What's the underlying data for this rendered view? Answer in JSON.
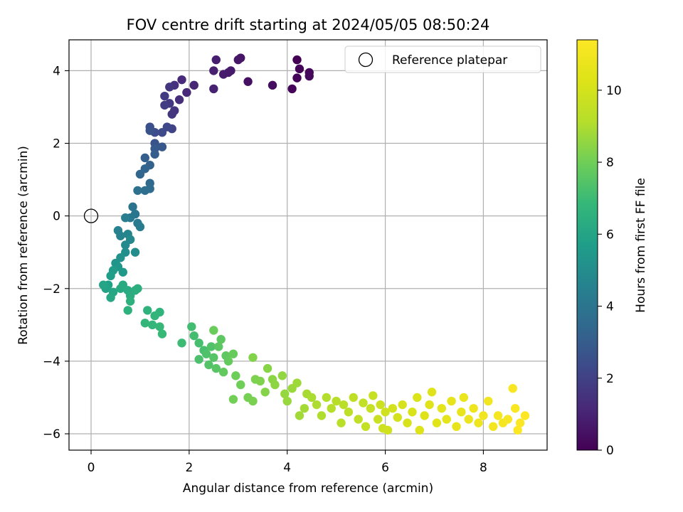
{
  "chart_data": {
    "type": "scatter",
    "title": "FOV centre drift starting at 2024/05/05 08:50:24",
    "xlabel": "Angular distance from reference (arcmin)",
    "ylabel": "Rotation from reference (arcmin)",
    "xlim": [
      -0.45,
      9.3
    ],
    "ylim": [
      -6.45,
      4.85
    ],
    "xticks": [
      0,
      2,
      4,
      6,
      8
    ],
    "yticks": [
      -6,
      -4,
      -2,
      0,
      2,
      4
    ],
    "grid": true,
    "legend_position": "top-right",
    "legend_entries": [
      "Reference platepar"
    ],
    "reference_point": {
      "x": 0,
      "y": 0,
      "label": "Reference platepar"
    },
    "colorbar": {
      "label": "Hours from first FF file",
      "colormap": "viridis",
      "range": [
        0,
        11.4
      ],
      "ticks": [
        0,
        2,
        4,
        6,
        8,
        10
      ]
    },
    "series": [
      {
        "points": [
          [
            4.2,
            4.3,
            0.0
          ],
          [
            4.25,
            4.05,
            0.05
          ],
          [
            4.2,
            3.8,
            0.1
          ],
          [
            4.1,
            3.5,
            0.15
          ],
          [
            4.45,
            3.95,
            0.2
          ],
          [
            4.45,
            3.85,
            0.25
          ],
          [
            3.7,
            3.6,
            0.35
          ],
          [
            3.2,
            3.7,
            0.45
          ],
          [
            3.05,
            4.35,
            0.55
          ],
          [
            3.0,
            4.3,
            0.6
          ],
          [
            2.85,
            4.0,
            0.7
          ],
          [
            2.8,
            3.95,
            0.75
          ],
          [
            2.7,
            3.9,
            0.8
          ],
          [
            2.55,
            4.3,
            0.85
          ],
          [
            2.5,
            4.0,
            0.9
          ],
          [
            2.5,
            3.5,
            0.95
          ],
          [
            2.1,
            3.6,
            1.05
          ],
          [
            1.95,
            3.4,
            1.15
          ],
          [
            1.85,
            3.75,
            1.25
          ],
          [
            1.8,
            3.2,
            1.35
          ],
          [
            1.7,
            3.6,
            1.45
          ],
          [
            1.7,
            2.9,
            1.55
          ],
          [
            1.65,
            2.8,
            1.6
          ],
          [
            1.6,
            3.55,
            1.65
          ],
          [
            1.6,
            3.1,
            1.7
          ],
          [
            1.5,
            3.3,
            1.8
          ],
          [
            1.5,
            3.05,
            1.85
          ],
          [
            1.65,
            2.4,
            2.1
          ],
          [
            1.55,
            2.45,
            2.2
          ],
          [
            1.45,
            2.3,
            2.3
          ],
          [
            1.3,
            2.3,
            2.4
          ],
          [
            1.2,
            2.45,
            2.5
          ],
          [
            1.2,
            2.35,
            2.6
          ],
          [
            1.3,
            2.0,
            2.7
          ],
          [
            1.45,
            1.9,
            2.8
          ],
          [
            1.3,
            1.85,
            2.9
          ],
          [
            1.3,
            1.7,
            3.0
          ],
          [
            1.1,
            1.6,
            3.1
          ],
          [
            1.2,
            1.4,
            3.2
          ],
          [
            1.1,
            1.3,
            3.3
          ],
          [
            1.0,
            1.15,
            3.4
          ],
          [
            1.2,
            0.9,
            3.5
          ],
          [
            1.2,
            0.75,
            3.6
          ],
          [
            1.1,
            0.7,
            3.7
          ],
          [
            0.95,
            0.7,
            3.8
          ],
          [
            0.85,
            0.25,
            3.9
          ],
          [
            0.9,
            0.05,
            4.0
          ],
          [
            0.8,
            -0.05,
            4.1
          ],
          [
            0.95,
            -0.2,
            4.2
          ],
          [
            1.0,
            -0.3,
            4.3
          ],
          [
            0.7,
            -0.05,
            4.4
          ],
          [
            0.55,
            -0.4,
            4.5
          ],
          [
            0.6,
            -0.55,
            4.6
          ],
          [
            0.75,
            -0.5,
            4.7
          ],
          [
            0.8,
            -0.65,
            4.8
          ],
          [
            0.7,
            -0.8,
            4.9
          ],
          [
            0.9,
            -1.0,
            5.0
          ],
          [
            0.7,
            -1.0,
            5.1
          ],
          [
            0.6,
            -1.15,
            5.2
          ],
          [
            0.5,
            -1.3,
            5.3
          ],
          [
            0.55,
            -1.4,
            5.4
          ],
          [
            0.65,
            -1.55,
            5.5
          ],
          [
            0.45,
            -1.5,
            5.6
          ],
          [
            0.4,
            -1.65,
            5.7
          ],
          [
            0.35,
            -1.9,
            5.8
          ],
          [
            0.3,
            -2.0,
            5.9
          ],
          [
            0.25,
            -1.9,
            6.0
          ],
          [
            0.45,
            -2.1,
            6.05
          ],
          [
            0.4,
            -2.25,
            6.1
          ],
          [
            0.6,
            -2.0,
            6.2
          ],
          [
            0.65,
            -1.9,
            6.25
          ],
          [
            0.75,
            -2.05,
            6.3
          ],
          [
            0.8,
            -2.2,
            6.35
          ],
          [
            0.9,
            -2.05,
            6.4
          ],
          [
            0.95,
            -2.0,
            6.45
          ],
          [
            0.8,
            -2.35,
            6.5
          ],
          [
            0.75,
            -2.6,
            6.55
          ],
          [
            1.15,
            -2.6,
            6.6
          ],
          [
            1.4,
            -2.65,
            6.65
          ],
          [
            1.3,
            -2.75,
            6.7
          ],
          [
            1.1,
            -2.95,
            6.75
          ],
          [
            1.25,
            -3.0,
            6.8
          ],
          [
            1.4,
            -3.05,
            6.85
          ],
          [
            1.45,
            -3.25,
            6.9
          ],
          [
            1.85,
            -3.5,
            7.0
          ],
          [
            2.05,
            -3.05,
            7.1
          ],
          [
            2.1,
            -3.3,
            7.15
          ],
          [
            2.2,
            -3.5,
            7.2
          ],
          [
            2.3,
            -3.7,
            7.25
          ],
          [
            2.2,
            -3.95,
            7.3
          ],
          [
            2.35,
            -3.8,
            7.35
          ],
          [
            2.45,
            -3.6,
            7.4
          ],
          [
            2.4,
            -4.1,
            7.45
          ],
          [
            2.5,
            -3.9,
            7.5
          ],
          [
            2.55,
            -4.2,
            7.55
          ],
          [
            2.6,
            -3.6,
            7.6
          ],
          [
            2.65,
            -3.4,
            7.65
          ],
          [
            2.75,
            -3.85,
            7.7
          ],
          [
            2.7,
            -4.3,
            7.75
          ],
          [
            2.8,
            -4.0,
            7.8
          ],
          [
            2.9,
            -3.8,
            7.85
          ],
          [
            2.5,
            -3.15,
            7.9
          ],
          [
            2.95,
            -4.4,
            7.95
          ],
          [
            3.05,
            -4.65,
            8.0
          ],
          [
            2.9,
            -5.05,
            8.05
          ],
          [
            3.2,
            -5.0,
            8.1
          ],
          [
            3.3,
            -5.1,
            8.15
          ],
          [
            3.35,
            -4.5,
            8.2
          ],
          [
            3.45,
            -4.55,
            8.25
          ],
          [
            3.3,
            -3.9,
            8.3
          ],
          [
            3.55,
            -4.85,
            8.35
          ],
          [
            3.6,
            -4.2,
            8.4
          ],
          [
            3.7,
            -4.5,
            8.45
          ],
          [
            3.75,
            -4.65,
            8.5
          ],
          [
            3.9,
            -4.4,
            8.55
          ],
          [
            3.95,
            -4.9,
            8.6
          ],
          [
            4.0,
            -5.1,
            8.65
          ],
          [
            4.1,
            -4.75,
            8.7
          ],
          [
            4.2,
            -4.6,
            8.75
          ],
          [
            4.25,
            -5.5,
            8.8
          ],
          [
            4.35,
            -5.3,
            8.85
          ],
          [
            4.4,
            -4.9,
            8.9
          ],
          [
            4.5,
            -5.0,
            8.95
          ],
          [
            4.6,
            -5.2,
            9.0
          ],
          [
            4.7,
            -5.5,
            9.05
          ],
          [
            4.8,
            -5.0,
            9.1
          ],
          [
            4.9,
            -5.3,
            9.15
          ],
          [
            5.0,
            -5.1,
            9.2
          ],
          [
            5.1,
            -5.7,
            9.25
          ],
          [
            5.15,
            -5.2,
            9.3
          ],
          [
            5.25,
            -5.4,
            9.35
          ],
          [
            5.35,
            -5.0,
            9.4
          ],
          [
            5.45,
            -5.6,
            9.45
          ],
          [
            5.55,
            -5.15,
            9.5
          ],
          [
            5.6,
            -5.8,
            9.55
          ],
          [
            5.7,
            -5.3,
            9.6
          ],
          [
            5.75,
            -4.95,
            9.65
          ],
          [
            5.85,
            -5.6,
            9.7
          ],
          [
            5.9,
            -5.2,
            9.75
          ],
          [
            5.95,
            -5.85,
            9.8
          ],
          [
            6.0,
            -5.4,
            9.85
          ],
          [
            6.05,
            -5.9,
            9.9
          ],
          [
            6.15,
            -5.3,
            9.95
          ],
          [
            6.25,
            -5.55,
            10.0
          ],
          [
            6.35,
            -5.2,
            10.05
          ],
          [
            6.45,
            -5.7,
            10.1
          ],
          [
            6.55,
            -5.4,
            10.15
          ],
          [
            6.65,
            -5.0,
            10.2
          ],
          [
            6.7,
            -5.9,
            10.25
          ],
          [
            6.8,
            -5.5,
            10.3
          ],
          [
            6.9,
            -5.2,
            10.35
          ],
          [
            6.95,
            -4.85,
            10.4
          ],
          [
            7.05,
            -5.7,
            10.45
          ],
          [
            7.15,
            -5.3,
            10.5
          ],
          [
            7.25,
            -5.6,
            10.55
          ],
          [
            7.35,
            -5.1,
            10.6
          ],
          [
            7.45,
            -5.8,
            10.65
          ],
          [
            7.55,
            -5.4,
            10.7
          ],
          [
            7.6,
            -5.0,
            10.75
          ],
          [
            7.7,
            -5.6,
            10.8
          ],
          [
            7.8,
            -5.3,
            10.85
          ],
          [
            7.9,
            -5.7,
            10.9
          ],
          [
            8.0,
            -5.5,
            10.95
          ],
          [
            8.1,
            -5.1,
            11.0
          ],
          [
            8.2,
            -5.8,
            11.05
          ],
          [
            8.3,
            -5.5,
            11.1
          ],
          [
            8.4,
            -5.7,
            11.15
          ],
          [
            8.5,
            -5.6,
            11.2
          ],
          [
            8.6,
            -4.75,
            11.25
          ],
          [
            8.65,
            -5.3,
            11.28
          ],
          [
            8.7,
            -5.9,
            11.32
          ],
          [
            8.75,
            -5.7,
            11.36
          ],
          [
            8.85,
            -5.5,
            11.4
          ]
        ]
      }
    ]
  }
}
